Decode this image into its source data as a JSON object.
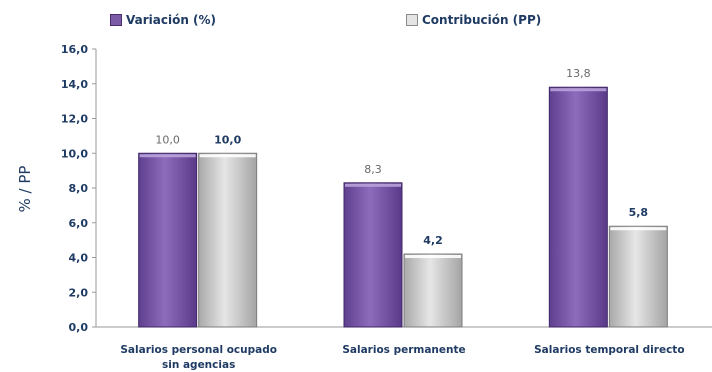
{
  "chart_data": {
    "type": "bar",
    "categories": [
      "Salarios personal ocupado sin agencias",
      "Salarios permanente",
      "Salarios temporal directo"
    ],
    "category_lines": [
      [
        "Salarios personal ocupado",
        "sin agencias"
      ],
      [
        "Salarios permanente"
      ],
      [
        "Salarios temporal directo"
      ]
    ],
    "series": [
      {
        "name": "Variación (%)",
        "values": [
          10.0,
          8.3,
          13.8
        ],
        "labels": [
          "10,0",
          "8,3",
          "13,8"
        ],
        "color": "#7b5aa6"
      },
      {
        "name": "Contribución (PP)",
        "values": [
          10.0,
          4.2,
          5.8
        ],
        "labels": [
          "10,0",
          "4,2",
          "5,8"
        ],
        "color": "#c8c8c8"
      }
    ],
    "ylabel": "% / PP",
    "ylim": [
      0,
      16
    ],
    "yticks": [
      "0,0",
      "2,0",
      "4,0",
      "6,0",
      "8,0",
      "10,0",
      "12,0",
      "14,0",
      "16,0"
    ],
    "grid": false,
    "legend_position": "top"
  },
  "legend": {
    "items": [
      "Variación (%)",
      "Contribución (PP)"
    ]
  }
}
